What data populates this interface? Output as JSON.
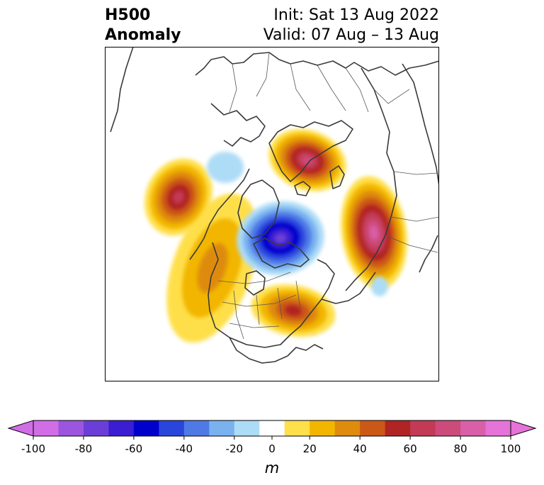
{
  "header": {
    "title_line1": "H500",
    "title_line2": "Anomaly",
    "init": "Init: Sat 13 Aug 2022",
    "valid": "Valid: 07 Aug – 13 Aug"
  },
  "map": {
    "projection": "north-polar-stereographic",
    "field": "500 hPa geopotential height anomaly",
    "features": [
      {
        "name": "polar-low",
        "kind": "negative",
        "peak_value": -80
      },
      {
        "name": "scandinavia-high",
        "kind": "positive",
        "peak_value": 80
      },
      {
        "name": "siberia-high",
        "kind": "positive",
        "peak_value": 90
      },
      {
        "name": "alaska-pacific-high",
        "kind": "positive",
        "peak_value": 70
      },
      {
        "name": "eastern-north-america-high",
        "kind": "positive",
        "peak_value": 60
      },
      {
        "name": "western-north-america-ridge",
        "kind": "positive",
        "peak_value": 40
      },
      {
        "name": "greenland-weak-low",
        "kind": "negative",
        "peak_value": -20
      },
      {
        "name": "north-atlantic-weak-low",
        "kind": "negative",
        "peak_value": -20
      }
    ]
  },
  "colorbar": {
    "unit": "m",
    "ticks": [
      "-100",
      "-80",
      "-60",
      "-40",
      "-20",
      "0",
      "20",
      "40",
      "60",
      "80",
      "100"
    ],
    "levels": [
      -100,
      -90,
      -80,
      -70,
      -60,
      -50,
      -40,
      -30,
      -20,
      -10,
      10,
      20,
      30,
      40,
      50,
      60,
      70,
      80,
      90,
      100
    ],
    "colors": [
      "#d16ee6",
      "#9c55de",
      "#6b3fd7",
      "#3b1ed2",
      "#0000cd",
      "#2a45dc",
      "#4f7ae6",
      "#7ab2f0",
      "#addcf7",
      "#ffffff",
      "#ffdf4a",
      "#f2b600",
      "#de8b0e",
      "#cc5818",
      "#b02424",
      "#c23a56",
      "#cd4b7b",
      "#d95fa8",
      "#e673d8"
    ],
    "extend": "both",
    "over_color": "#e673d8",
    "under_color": "#d16ee6"
  }
}
